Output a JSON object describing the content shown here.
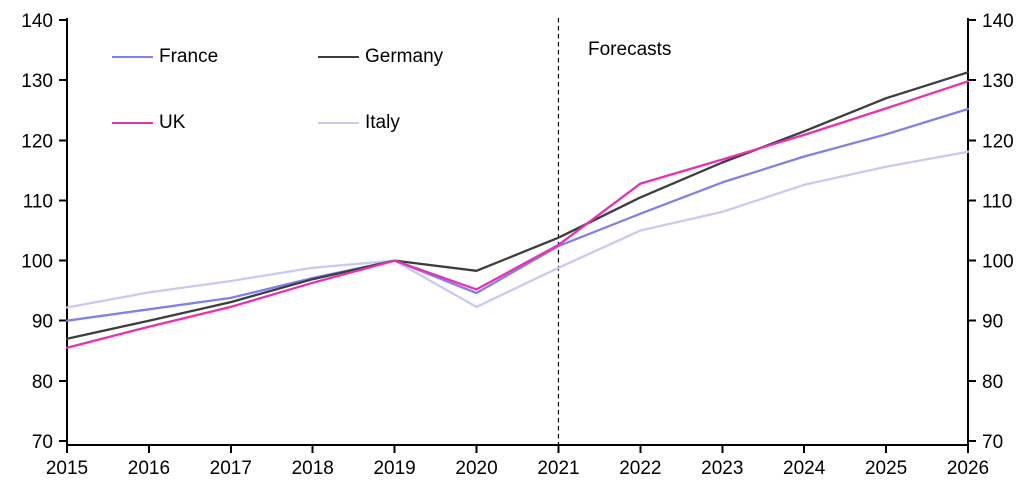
{
  "chart_data": {
    "type": "line",
    "title": "",
    "xlabel": "",
    "ylabel": "",
    "x": [
      2015,
      2016,
      2017,
      2018,
      2019,
      2020,
      2021,
      2022,
      2023,
      2024,
      2025,
      2026
    ],
    "x_tick_labels": [
      "2015",
      "2016",
      "2017",
      "2018",
      "2019",
      "2020",
      "2021",
      "2022",
      "2023",
      "2024",
      "2025",
      "2026"
    ],
    "y_ticks": [
      70,
      80,
      90,
      100,
      110,
      120,
      130,
      140
    ],
    "ylim": [
      70,
      140
    ],
    "xlim": [
      2015,
      2026
    ],
    "grid": false,
    "dual_y_axis": true,
    "axis_color": "#000000",
    "forecast_divider_x": 2021,
    "annotation": {
      "text": "Forecasts"
    },
    "legend": {
      "position": "top-left",
      "rows": 2,
      "columns": 2
    },
    "series": [
      {
        "name": "France",
        "color": "#8080e8",
        "values": [
          90.0,
          91.9,
          93.8,
          97.1,
          100.0,
          94.6,
          102.4,
          107.8,
          113.0,
          117.3,
          121.0,
          125.2
        ]
      },
      {
        "name": "Germany",
        "color": "#3d3d3d",
        "values": [
          87.0,
          90.0,
          93.1,
          96.9,
          100.0,
          98.3,
          103.8,
          110.5,
          116.3,
          121.5,
          127.0,
          131.3
        ]
      },
      {
        "name": "UK",
        "color": "#e632b2",
        "values": [
          85.5,
          89.0,
          92.3,
          96.3,
          100.0,
          95.2,
          102.6,
          112.8,
          116.8,
          120.9,
          125.3,
          129.8
        ]
      },
      {
        "name": "Italy",
        "color": "#c9c9f3",
        "values": [
          92.2,
          94.7,
          96.6,
          98.8,
          100.0,
          92.3,
          98.8,
          105.0,
          108.1,
          112.6,
          115.6,
          118.1
        ]
      }
    ]
  }
}
